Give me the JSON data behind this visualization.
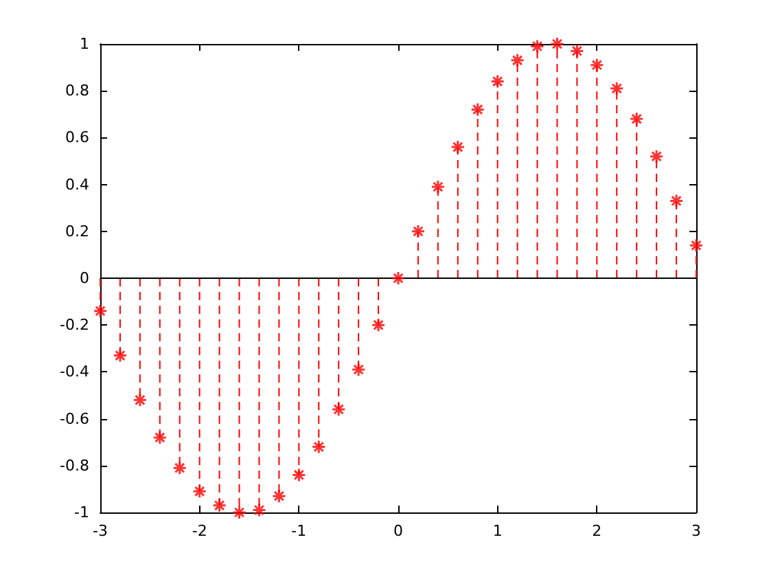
{
  "chart_data": {
    "type": "lollipop",
    "x": [
      -3,
      -2.8,
      -2.6,
      -2.4,
      -2.2,
      -2,
      -1.8,
      -1.6,
      -1.4,
      -1.2,
      -1,
      -0.8,
      -0.6,
      -0.4,
      -0.2,
      0,
      0.2,
      0.4,
      0.6,
      0.8,
      1,
      1.2,
      1.4,
      1.6,
      1.8,
      2,
      2.2,
      2.4,
      2.6,
      2.8,
      3
    ],
    "values": [
      -0.14,
      -0.33,
      -0.52,
      -0.68,
      -0.81,
      -0.91,
      -0.97,
      -1.0,
      -0.99,
      -0.93,
      -0.84,
      -0.72,
      -0.56,
      -0.39,
      -0.2,
      0,
      0.2,
      0.39,
      0.56,
      0.72,
      0.84,
      0.93,
      0.99,
      1.0,
      0.97,
      0.91,
      0.81,
      0.68,
      0.52,
      0.33,
      0.14
    ],
    "color": "#ff0000",
    "marker": "cross",
    "line_style": "dashed",
    "grid": false,
    "xlim": [
      -3,
      3
    ],
    "xticks": [
      -3,
      -2,
      -1,
      0,
      1,
      2,
      3
    ],
    "ylim": [
      -1,
      1
    ],
    "yticks": [
      -1,
      -0.8,
      -0.6,
      -0.4,
      -0.2,
      0,
      0.2,
      0.4,
      0.6,
      0.8,
      1
    ],
    "ref_lines": [
      {
        "axis": "y",
        "value": 0,
        "color": "#000000"
      }
    ]
  }
}
